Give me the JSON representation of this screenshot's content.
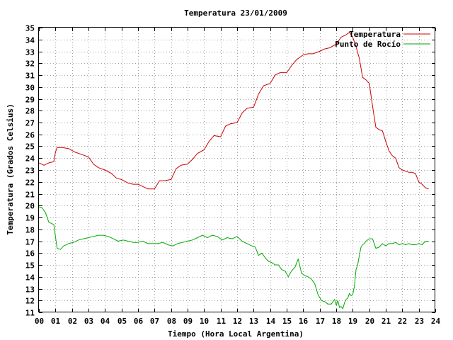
{
  "chart_data": {
    "type": "line",
    "title": "Temperatura 23/01/2009",
    "xlabel": "Tiempo (Hora Local Argentina)",
    "ylabel": "Temperatura (Grados Celsius)",
    "xlim": [
      0,
      24
    ],
    "ylim": [
      11,
      35
    ],
    "x_ticks": [
      "00",
      "01",
      "02",
      "03",
      "04",
      "05",
      "06",
      "07",
      "08",
      "09",
      "10",
      "11",
      "12",
      "13",
      "14",
      "15",
      "16",
      "17",
      "18",
      "19",
      "20",
      "21",
      "22",
      "23",
      "24"
    ],
    "y_ticks": [
      "11",
      "12",
      "13",
      "14",
      "15",
      "16",
      "17",
      "18",
      "19",
      "20",
      "21",
      "22",
      "23",
      "24",
      "25",
      "26",
      "27",
      "28",
      "29",
      "30",
      "31",
      "32",
      "33",
      "34",
      "35"
    ],
    "grid": true,
    "legend_position": "top-right",
    "series": [
      {
        "name": "Temperatura",
        "color": "#cc0000",
        "x": [
          0.0,
          0.3,
          0.6,
          0.9,
          1.0,
          1.1,
          1.4,
          1.8,
          2.2,
          2.6,
          3.0,
          3.3,
          3.6,
          4.0,
          4.4,
          4.7,
          5.0,
          5.4,
          5.7,
          6.0,
          6.3,
          6.6,
          7.0,
          7.3,
          7.6,
          8.0,
          8.3,
          8.6,
          9.0,
          9.3,
          9.6,
          10.0,
          10.3,
          10.6,
          11.0,
          11.3,
          11.6,
          12.0,
          12.3,
          12.6,
          13.0,
          13.3,
          13.6,
          14.0,
          14.3,
          14.6,
          15.0,
          15.3,
          15.6,
          16.0,
          16.3,
          16.6,
          17.0,
          17.3,
          17.6,
          18.0,
          18.3,
          18.6,
          18.8,
          19.0,
          19.2,
          19.4,
          19.6,
          19.8,
          20.0,
          20.2,
          20.4,
          20.6,
          20.8,
          21.0,
          21.2,
          21.4,
          21.6,
          21.8,
          22.0,
          22.2,
          22.4,
          22.6,
          22.8,
          23.0,
          23.2,
          23.4,
          23.6
        ],
        "values": [
          23.6,
          23.4,
          23.6,
          23.7,
          24.5,
          24.9,
          24.9,
          24.8,
          24.5,
          24.3,
          24.1,
          23.5,
          23.2,
          23.0,
          22.7,
          22.3,
          22.2,
          21.9,
          21.8,
          21.8,
          21.6,
          21.4,
          21.4,
          22.1,
          22.1,
          22.2,
          23.1,
          23.4,
          23.5,
          23.9,
          24.4,
          24.7,
          25.4,
          25.9,
          25.8,
          26.7,
          26.9,
          27.0,
          27.8,
          28.2,
          28.3,
          29.4,
          30.1,
          30.3,
          31.0,
          31.2,
          31.2,
          31.8,
          32.3,
          32.7,
          32.8,
          32.8,
          33.0,
          33.2,
          33.3,
          33.6,
          34.2,
          34.4,
          34.6,
          34.2,
          33.4,
          32.4,
          30.8,
          30.6,
          30.3,
          28.4,
          26.6,
          26.4,
          26.3,
          25.4,
          24.6,
          24.2,
          24.0,
          23.2,
          23.0,
          22.9,
          22.8,
          22.8,
          22.7,
          22.0,
          21.8,
          21.5,
          21.4
        ]
      },
      {
        "name": "Punto de Rocío",
        "color": "#00aa00",
        "x": [
          0.0,
          0.2,
          0.4,
          0.6,
          0.9,
          1.0,
          1.1,
          1.3,
          1.5,
          1.8,
          2.1,
          2.4,
          2.7,
          3.0,
          3.3,
          3.6,
          3.9,
          4.2,
          4.5,
          4.8,
          5.1,
          5.4,
          5.7,
          6.0,
          6.3,
          6.6,
          6.9,
          7.2,
          7.5,
          7.8,
          8.1,
          8.4,
          8.7,
          9.0,
          9.3,
          9.6,
          9.9,
          10.2,
          10.5,
          10.8,
          11.1,
          11.4,
          11.7,
          12.0,
          12.3,
          12.6,
          12.9,
          13.1,
          13.3,
          13.5,
          13.7,
          13.9,
          14.1,
          14.3,
          14.5,
          14.7,
          14.9,
          15.1,
          15.3,
          15.5,
          15.7,
          15.9,
          16.1,
          16.3,
          16.5,
          16.7,
          16.9,
          17.1,
          17.3,
          17.5,
          17.7,
          17.9,
          18.0,
          18.1,
          18.2,
          18.3,
          18.4,
          18.5,
          18.6,
          18.7,
          18.8,
          18.9,
          19.0,
          19.1,
          19.2,
          19.3,
          19.4,
          19.5,
          19.6,
          19.7,
          19.8,
          20.0,
          20.2,
          20.4,
          20.6,
          20.8,
          21.0,
          21.2,
          21.4,
          21.6,
          21.8,
          22.0,
          22.2,
          22.4,
          22.6,
          22.8,
          23.0,
          23.2,
          23.4,
          23.6
        ],
        "values": [
          19.9,
          19.8,
          19.4,
          18.6,
          18.4,
          17.4,
          16.4,
          16.3,
          16.6,
          16.8,
          16.9,
          17.1,
          17.2,
          17.3,
          17.4,
          17.5,
          17.5,
          17.4,
          17.2,
          17.0,
          17.1,
          17.0,
          16.9,
          16.9,
          17.0,
          16.8,
          16.8,
          16.8,
          16.9,
          16.7,
          16.6,
          16.8,
          16.9,
          17.0,
          17.1,
          17.3,
          17.5,
          17.3,
          17.5,
          17.4,
          17.1,
          17.3,
          17.2,
          17.4,
          17.0,
          16.8,
          16.6,
          16.5,
          15.8,
          16.0,
          15.6,
          15.3,
          15.2,
          15.0,
          15.0,
          14.6,
          14.5,
          14.0,
          14.5,
          14.8,
          15.5,
          14.3,
          14.1,
          14.0,
          13.8,
          13.4,
          12.5,
          12.0,
          11.9,
          11.7,
          11.7,
          12.1,
          11.6,
          12.0,
          11.4,
          11.5,
          11.3,
          11.8,
          12.1,
          12.2,
          12.6,
          12.4,
          12.5,
          13.2,
          14.6,
          15.0,
          15.8,
          16.5,
          16.7,
          16.8,
          17.0,
          17.2,
          17.2,
          16.4,
          16.5,
          16.8,
          16.6,
          16.8,
          16.8,
          16.9,
          16.7,
          16.8,
          16.7,
          16.8,
          16.7,
          16.7,
          16.8,
          16.7,
          17.0,
          17.0
        ]
      }
    ]
  }
}
